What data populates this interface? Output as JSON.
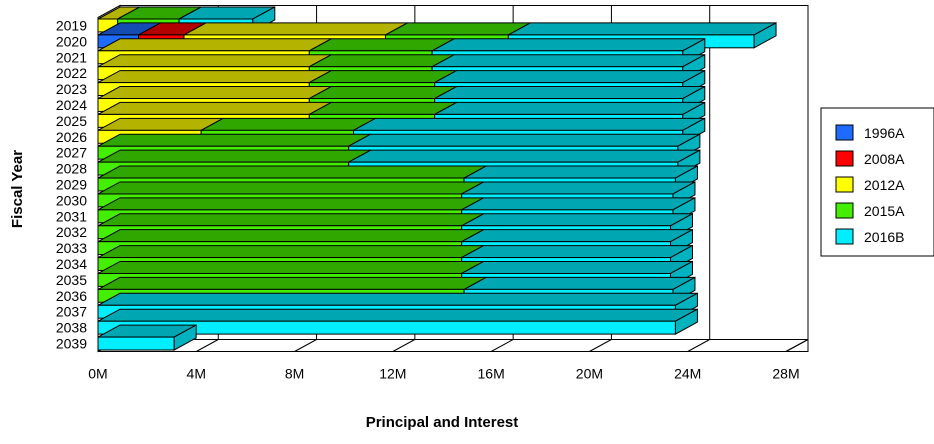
{
  "chart_data": {
    "type": "bar",
    "orientation": "horizontal",
    "stacked": true,
    "three_d": true,
    "title": "",
    "xlabel": "Principal and Interest",
    "ylabel": "Fiscal Year",
    "xlim": [
      0,
      28000000
    ],
    "x_tick_labels": [
      "0M",
      "4M",
      "8M",
      "12M",
      "16M",
      "20M",
      "24M",
      "28M"
    ],
    "categories": [
      "2019",
      "2020",
      "2021",
      "2022",
      "2023",
      "2024",
      "2025",
      "2026",
      "2027",
      "2028",
      "2029",
      "2030",
      "2031",
      "2032",
      "2033",
      "2034",
      "2035",
      "2036",
      "2037",
      "2038",
      "2039"
    ],
    "series": [
      {
        "name": "1996A",
        "color": "#1e6cff",
        "values": [
          0,
          1650000,
          0,
          0,
          0,
          0,
          0,
          0,
          0,
          0,
          0,
          0,
          0,
          0,
          0,
          0,
          0,
          0,
          0,
          0,
          0
        ]
      },
      {
        "name": "2008A",
        "color": "#ff0000",
        "values": [
          0,
          1850000,
          0,
          0,
          0,
          0,
          0,
          0,
          0,
          0,
          0,
          0,
          0,
          0,
          0,
          0,
          0,
          0,
          0,
          0,
          0
        ]
      },
      {
        "name": "2012A",
        "color": "#ffff00",
        "values": [
          800000,
          8200000,
          8600000,
          8600000,
          8600000,
          8600000,
          8600000,
          4200000,
          0,
          0,
          0,
          0,
          0,
          0,
          0,
          0,
          0,
          0,
          0,
          0,
          0
        ]
      },
      {
        "name": "2015A",
        "color": "#44ee00",
        "values": [
          2500000,
          5000000,
          5000000,
          5000000,
          5100000,
          5100000,
          5100000,
          6200000,
          10200000,
          10200000,
          14900000,
          14800000,
          14800000,
          14800000,
          14800000,
          14800000,
          14800000,
          14900000,
          0,
          0,
          0
        ]
      },
      {
        "name": "2016B",
        "color": "#00eeff",
        "values": [
          3000000,
          10000000,
          10200000,
          10200000,
          10100000,
          10100000,
          10100000,
          13400000,
          13400000,
          13400000,
          8600000,
          8600000,
          8600000,
          8500000,
          8500000,
          8500000,
          8500000,
          8500000,
          23500000,
          23500000,
          3100000
        ]
      }
    ],
    "legend": {
      "position": "right",
      "entries": [
        "1996A",
        "2008A",
        "2012A",
        "2015A",
        "2016B"
      ]
    },
    "grid": {
      "vertical": true,
      "horizontal": false
    }
  }
}
